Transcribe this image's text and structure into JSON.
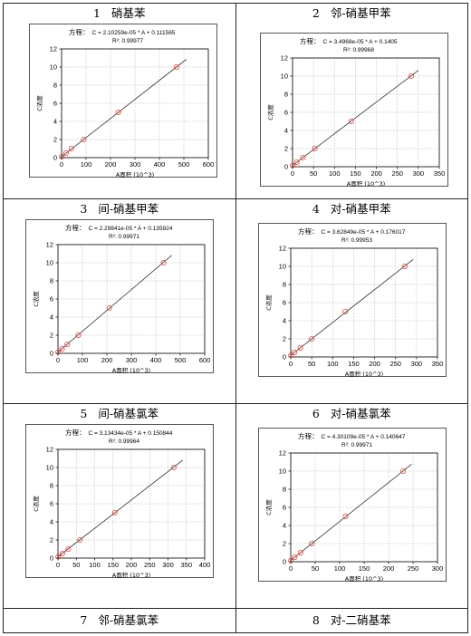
{
  "cells": [
    {
      "num": "1",
      "name": "硝基苯"
    },
    {
      "num": "2",
      "name": "邻-硝基甲苯"
    },
    {
      "num": "3",
      "name": "间-硝基甲苯"
    },
    {
      "num": "4",
      "name": "对-硝基甲苯"
    },
    {
      "num": "5",
      "name": "间-硝基氯苯"
    },
    {
      "num": "6",
      "name": "对-硝基氯苯"
    },
    {
      "num": "7",
      "name": "邻-硝基氯苯"
    },
    {
      "num": "8",
      "name": "对-二硝基苯"
    }
  ],
  "chart_data": [
    {
      "type": "scatter",
      "equation_label": "方程：",
      "equation": "C = 2.10259e-05 * A + 0.111565",
      "r2": "R²: 0.99977",
      "xlabel": "A面积 (10^3)",
      "ylabel": "C浓度",
      "xlim": [
        0,
        600
      ],
      "ylim": [
        0,
        12
      ],
      "xticks": [
        0,
        100,
        200,
        300,
        400,
        500,
        600
      ],
      "yticks": [
        0,
        2,
        4,
        6,
        8,
        10,
        12
      ],
      "points": [
        {
          "x": 0.5,
          "y": 0.11
        },
        {
          "x": 18,
          "y": 0.5
        },
        {
          "x": 40,
          "y": 1
        },
        {
          "x": 90,
          "y": 2
        },
        {
          "x": 232,
          "y": 5
        },
        {
          "x": 470,
          "y": 10
        }
      ],
      "fit": {
        "x": [
          0,
          510
        ],
        "y": [
          0.11,
          10.85
        ]
      },
      "grid": true
    },
    {
      "type": "scatter",
      "equation_label": "方程：",
      "equation": "C = 3.4968e-05 * A + 0.1405",
      "r2": "R²: 0.99968",
      "xlabel": "A面积 (10^3)",
      "ylabel": "C浓度",
      "xlim": [
        0,
        350
      ],
      "ylim": [
        0,
        12
      ],
      "xticks": [
        0,
        50,
        100,
        150,
        200,
        250,
        300,
        350
      ],
      "yticks": [
        0,
        2,
        4,
        6,
        8,
        10,
        12
      ],
      "points": [
        {
          "x": 0.5,
          "y": 0.14
        },
        {
          "x": 10,
          "y": 0.5
        },
        {
          "x": 25,
          "y": 1
        },
        {
          "x": 53,
          "y": 2
        },
        {
          "x": 140,
          "y": 5
        },
        {
          "x": 283,
          "y": 10
        }
      ],
      "fit": {
        "x": [
          0,
          300
        ],
        "y": [
          0.14,
          10.63
        ]
      },
      "grid": true
    },
    {
      "type": "scatter",
      "equation_label": "方程：",
      "equation": "C = 2.29841e-05 * A + 0.135924",
      "r2": "R²: 0.99971",
      "xlabel": "A面积 (10^3)",
      "ylabel": "C浓度",
      "xlim": [
        0,
        600
      ],
      "ylim": [
        0,
        12
      ],
      "xticks": [
        0,
        100,
        200,
        300,
        400,
        500,
        600
      ],
      "yticks": [
        0,
        2,
        4,
        6,
        8,
        10,
        12
      ],
      "points": [
        {
          "x": 0.5,
          "y": 0.14
        },
        {
          "x": 17,
          "y": 0.5
        },
        {
          "x": 38,
          "y": 1
        },
        {
          "x": 83,
          "y": 2
        },
        {
          "x": 210,
          "y": 5
        },
        {
          "x": 432,
          "y": 10
        }
      ],
      "fit": {
        "x": [
          0,
          465
        ],
        "y": [
          0.14,
          10.82
        ]
      },
      "grid": true
    },
    {
      "type": "scatter",
      "equation_label": "方程：",
      "equation": "C = 3.62849e-05 * A + 0.176017",
      "r2": "R²: 0.99953",
      "xlabel": "A面积 (10^3)",
      "ylabel": "C浓度",
      "xlim": [
        0,
        350
      ],
      "ylim": [
        0,
        12
      ],
      "xticks": [
        0,
        50,
        100,
        150,
        200,
        250,
        300,
        350
      ],
      "yticks": [
        0,
        2,
        4,
        6,
        8,
        10,
        12
      ],
      "points": [
        {
          "x": 0.5,
          "y": 0.18
        },
        {
          "x": 9,
          "y": 0.5
        },
        {
          "x": 23,
          "y": 1
        },
        {
          "x": 50,
          "y": 2
        },
        {
          "x": 130,
          "y": 5
        },
        {
          "x": 272,
          "y": 10
        }
      ],
      "fit": {
        "x": [
          0,
          292
        ],
        "y": [
          0.18,
          10.77
        ]
      },
      "grid": true
    },
    {
      "type": "scatter",
      "equation_label": "方程：",
      "equation": "C = 3.13434e-05 * A + 0.150844",
      "r2": "R²: 0.99964",
      "xlabel": "A面积 (10^3)",
      "ylabel": "C浓度",
      "xlim": [
        0,
        400
      ],
      "ylim": [
        0,
        12
      ],
      "xticks": [
        0,
        50,
        100,
        150,
        200,
        250,
        300,
        350,
        400
      ],
      "yticks": [
        0,
        2,
        4,
        6,
        8,
        10,
        12
      ],
      "points": [
        {
          "x": 0.5,
          "y": 0.15
        },
        {
          "x": 12,
          "y": 0.5
        },
        {
          "x": 28,
          "y": 1
        },
        {
          "x": 60,
          "y": 2
        },
        {
          "x": 155,
          "y": 5
        },
        {
          "x": 316,
          "y": 10
        }
      ],
      "fit": {
        "x": [
          0,
          340
        ],
        "y": [
          0.15,
          10.81
        ]
      },
      "grid": true
    },
    {
      "type": "scatter",
      "equation_label": "方程：",
      "equation": "C = 4.30109e-05 * A + 0.140647",
      "r2": "R²: 0.99971",
      "xlabel": "A面积 (10^3)",
      "ylabel": "C浓度",
      "xlim": [
        0,
        300
      ],
      "ylim": [
        0,
        12
      ],
      "xticks": [
        0,
        50,
        100,
        150,
        200,
        250,
        300
      ],
      "yticks": [
        0,
        2,
        4,
        6,
        8,
        10,
        12
      ],
      "points": [
        {
          "x": 0.5,
          "y": 0.14
        },
        {
          "x": 8,
          "y": 0.5
        },
        {
          "x": 20,
          "y": 1
        },
        {
          "x": 43,
          "y": 2
        },
        {
          "x": 112,
          "y": 5
        },
        {
          "x": 230,
          "y": 10
        }
      ],
      "fit": {
        "x": [
          0,
          247
        ],
        "y": [
          0.14,
          10.76
        ]
      },
      "grid": true
    }
  ]
}
